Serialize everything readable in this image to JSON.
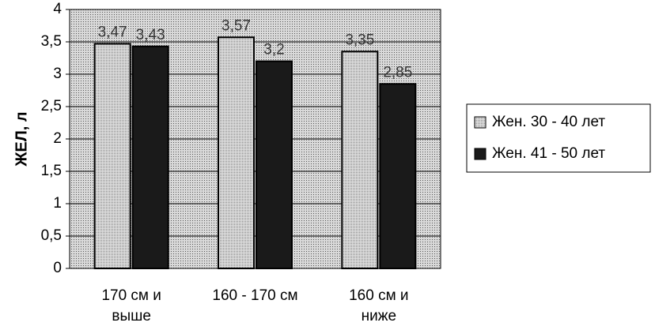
{
  "chart_data": {
    "type": "bar",
    "y_label": "ЖЕЛ, л",
    "categories": [
      "170 см и выше",
      "160 - 170 см",
      "160 см и ниже"
    ],
    "series": [
      {
        "name": "Жен. 30 - 40 лет",
        "color": "#c8c8c8",
        "values": [
          3.47,
          3.57,
          3.35
        ],
        "value_labels": [
          "3,47",
          "3,57",
          "3,35"
        ]
      },
      {
        "name": "Жен. 41 - 50 лет",
        "color": "#1a1a1a",
        "values": [
          3.43,
          3.2,
          2.85
        ],
        "value_labels": [
          "3,43",
          "3,2",
          "2,85"
        ]
      }
    ],
    "ylim": [
      0,
      4
    ],
    "yticks": [
      0,
      {
        "value": 0.5,
        "label": "0,5"
      },
      1,
      {
        "value": 1.5,
        "label": "1,5"
      },
      2,
      {
        "value": 2.5,
        "label": "2,5"
      },
      3,
      {
        "value": 3.5,
        "label": "3,5"
      },
      4
    ],
    "grid": true
  }
}
